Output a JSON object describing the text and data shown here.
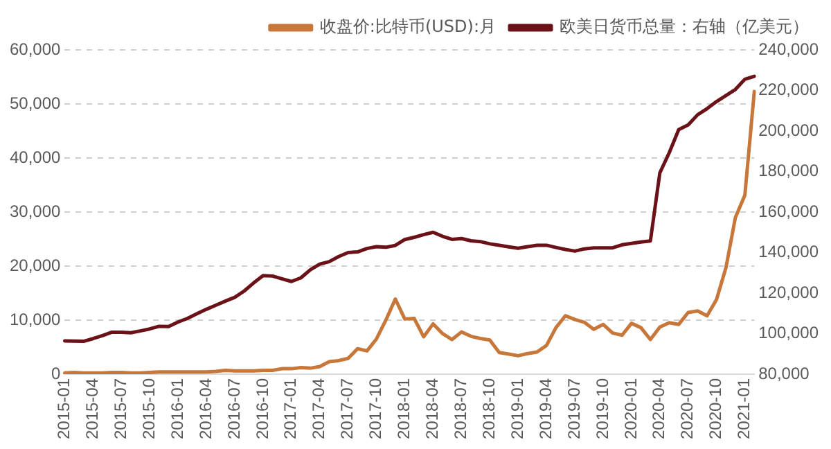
{
  "chart_data": {
    "type": "line",
    "categories": [
      "2015-01",
      null,
      null,
      "2015-04",
      null,
      null,
      "2015-07",
      null,
      null,
      "2015-10",
      null,
      null,
      "2016-01",
      null,
      null,
      "2016-04",
      null,
      null,
      "2016-07",
      null,
      null,
      "2016-10",
      null,
      null,
      "2017-01",
      null,
      null,
      "2017-04",
      null,
      null,
      "2017-07",
      null,
      null,
      "2017-10",
      null,
      null,
      "2018-01",
      null,
      null,
      "2018-04",
      null,
      null,
      "2018-07",
      null,
      null,
      "2018-10",
      null,
      null,
      "2019-01",
      null,
      null,
      "2019-04",
      null,
      null,
      "2019-07",
      null,
      null,
      "2019-10",
      null,
      null,
      "2020-01",
      null,
      null,
      "2020-04",
      null,
      null,
      "2020-07",
      null,
      null,
      "2020-10",
      null,
      null,
      "2021-01",
      null
    ],
    "series": [
      {
        "name": "收盘价:比特币(USD):月",
        "color": "#c8773a",
        "values": [
          200,
          300,
          200,
          200,
          200,
          300,
          300,
          200,
          200,
          300,
          400,
          400,
          400,
          400,
          400,
          400,
          500,
          700,
          600,
          600,
          600,
          700,
          700,
          1000,
          1000,
          1200,
          1100,
          1400,
          2300,
          2500,
          2900,
          4700,
          4300,
          6500,
          10000,
          13900,
          10200,
          10300,
          6900,
          9300,
          7500,
          6400,
          7800,
          7000,
          6600,
          6300,
          4000,
          3700,
          3400,
          3800,
          4100,
          5300,
          8600,
          10800,
          10100,
          9600,
          8300,
          9200,
          7600,
          7200,
          9400,
          8600,
          6400,
          8700,
          9500,
          9200,
          11400,
          11700,
          10800,
          13800,
          19700,
          29000,
          33100,
          52300
        ]
      },
      {
        "name": "欧美日货币总量：右轴（亿美元）",
        "color": "#6b1218",
        "axis": "y2",
        "values": [
          96400,
          96300,
          96200,
          97500,
          99000,
          100700,
          100700,
          100400,
          101300,
          102300,
          103600,
          103500,
          105700,
          107500,
          109800,
          112000,
          114000,
          116000,
          117900,
          121000,
          125000,
          128600,
          128400,
          127000,
          125700,
          127500,
          131500,
          134300,
          135500,
          138000,
          140000,
          140300,
          142000,
          142900,
          142600,
          143500,
          146400,
          147500,
          148800,
          150000,
          148000,
          146500,
          146900,
          145800,
          145400,
          144300,
          143600,
          142800,
          142100,
          142900,
          143600,
          143600,
          142500,
          141500,
          140700,
          141800,
          142300,
          142300,
          142300,
          143800,
          144500,
          145200,
          145700,
          179300,
          189300,
          200700,
          203000,
          208000,
          211000,
          214500,
          217500,
          220500,
          225500,
          227000
        ]
      }
    ],
    "ylim": [
      0,
      60000
    ],
    "yticks": [
      0,
      {
        "value": 10000,
        "label": "10,000"
      },
      {
        "value": 20000,
        "label": "20,000"
      },
      {
        "value": 30000,
        "label": "30,000"
      },
      {
        "value": 40000,
        "label": "40,000"
      },
      {
        "value": 50000,
        "label": "50,000"
      },
      {
        "value": 60000,
        "label": "60,000"
      }
    ],
    "y2lim": [
      80000,
      240000
    ],
    "y2ticks": [
      {
        "value": 80000,
        "label": "80,000"
      },
      {
        "value": 100000,
        "label": "100,000"
      },
      {
        "value": 120000,
        "label": "120,000"
      },
      {
        "value": 140000,
        "label": "140,000"
      },
      {
        "value": 160000,
        "label": "160,000"
      },
      {
        "value": 180000,
        "label": "180,000"
      },
      {
        "value": 200000,
        "label": "200,000"
      },
      {
        "value": 220000,
        "label": "220,000"
      },
      {
        "value": 240000,
        "label": "240,000"
      }
    ],
    "grid": "y",
    "legend": "top",
    "marker": "none",
    "line_style": "solid"
  }
}
